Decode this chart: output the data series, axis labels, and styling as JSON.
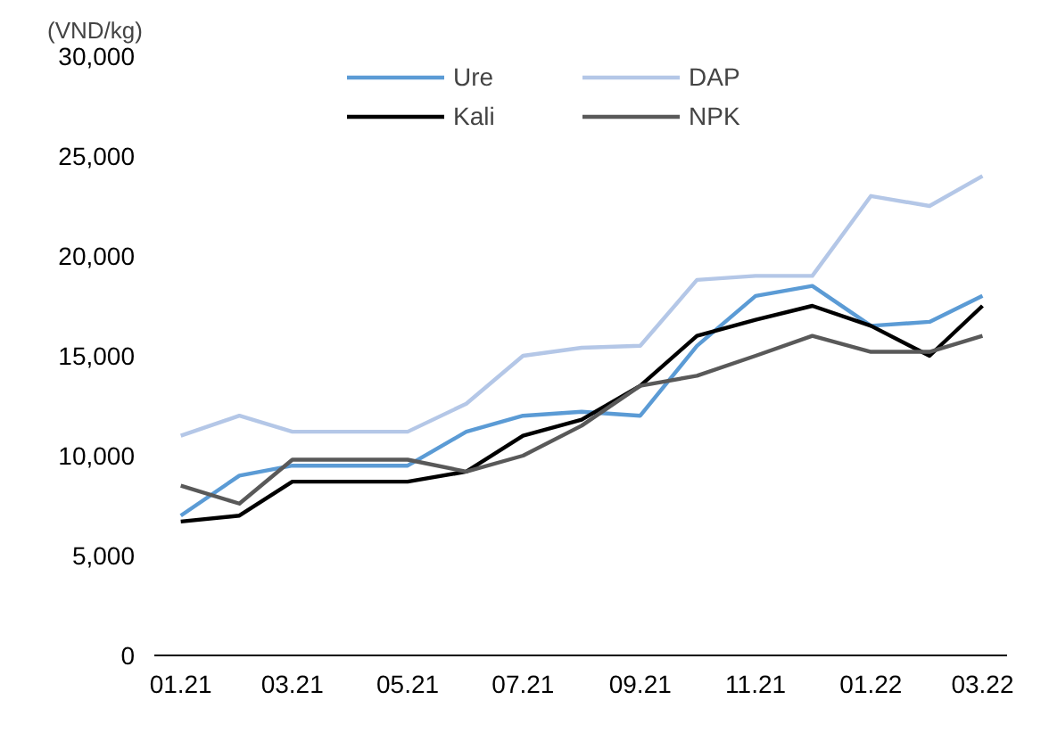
{
  "chart_data": {
    "type": "line",
    "ylabel": "(VND/kg)",
    "x": [
      "2021-01",
      "2021-02",
      "2021-03",
      "2021-04",
      "2021-05",
      "2021-06",
      "2021-07",
      "2021-08",
      "2021-09",
      "2021-10",
      "2021-11",
      "2021-12",
      "2022-01",
      "2022-02",
      "2022-03"
    ],
    "xlim": [
      "2020-12-18",
      "2022-03-14"
    ],
    "xticks": [
      {
        "value": "2021-01",
        "label": "01.21"
      },
      {
        "value": "2021-03",
        "label": "03.21"
      },
      {
        "value": "2021-05",
        "label": "05.21"
      },
      {
        "value": "2021-07",
        "label": "07.21"
      },
      {
        "value": "2021-09",
        "label": "09.21"
      },
      {
        "value": "2021-11",
        "label": "11.21"
      },
      {
        "value": "2022-01",
        "label": "01.22"
      },
      {
        "value": "2022-03",
        "label": "03.22"
      }
    ],
    "ylim": [
      0,
      30000
    ],
    "yticks": [
      {
        "value": 0,
        "label": "0"
      },
      {
        "value": 5000,
        "label": "5,000"
      },
      {
        "value": 10000,
        "label": "10,000"
      },
      {
        "value": 15000,
        "label": "15,000"
      },
      {
        "value": 20000,
        "label": "20,000"
      },
      {
        "value": 25000,
        "label": "25,000"
      },
      {
        "value": 30000,
        "label": "30,000"
      }
    ],
    "series": [
      {
        "name": "Ure",
        "color": "#5b9bd5",
        "values": [
          7000,
          9000,
          9500,
          9500,
          9500,
          11200,
          12000,
          12200,
          12000,
          15500,
          18000,
          18500,
          16500,
          16700,
          18000
        ]
      },
      {
        "name": "Kali",
        "color": "#000000",
        "values": [
          6700,
          7000,
          8700,
          8700,
          8700,
          9200,
          11000,
          11800,
          13500,
          16000,
          16800,
          17500,
          16500,
          15000,
          17500
        ]
      },
      {
        "name": "DAP",
        "color": "#b4c7e7",
        "values": [
          11000,
          12000,
          11200,
          11200,
          11200,
          12600,
          15000,
          15400,
          15500,
          18800,
          19000,
          19000,
          23000,
          22500,
          24000
        ]
      },
      {
        "name": "NPK",
        "color": "#595959",
        "values": [
          8500,
          7600,
          9800,
          9800,
          9800,
          9200,
          10000,
          11500,
          13500,
          14000,
          15000,
          16000,
          15200,
          15200,
          16000
        ]
      }
    ],
    "legend": "top"
  }
}
